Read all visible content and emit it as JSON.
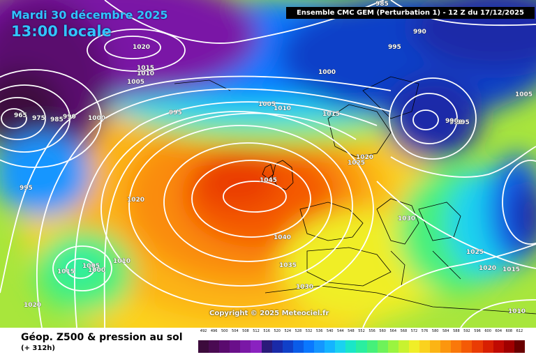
{
  "header": {
    "date": "Mardi 30 décembre 2025",
    "time": "13:00 locale",
    "run": "Ensemble CMC GEM  (Perturbation 1)  -  12 Z du 17/12/2025"
  },
  "footer": {
    "title": "Géop. Z500 & pression au sol",
    "lead": "(+ 312h)",
    "copyright": "Copyright © 2025 Meteociel.fr"
  },
  "legend": {
    "values": [
      "492",
      "496",
      "500",
      "504",
      "508",
      "512",
      "516",
      "520",
      "524",
      "528",
      "532",
      "536",
      "540",
      "544",
      "548",
      "552",
      "556",
      "560",
      "564",
      "568",
      "572",
      "576",
      "580",
      "584",
      "588",
      "592",
      "596",
      "600",
      "604",
      "608",
      "612"
    ],
    "colors": [
      "#3c0b3c",
      "#4a0a52",
      "#5a0b6e",
      "#6a0f8a",
      "#7a18a6",
      "#8a22c0",
      "#2a1a7a",
      "#1a2aa8",
      "#1040c8",
      "#0a5ce8",
      "#0a78ff",
      "#1496ff",
      "#14b4ff",
      "#1ad2f0",
      "#1ae6c8",
      "#2aeeA0",
      "#46f07a",
      "#6ef25a",
      "#9af440",
      "#c8f230",
      "#f0ee28",
      "#fad21e",
      "#fcb414",
      "#fc960e",
      "#fa780a",
      "#f45a06",
      "#ea3c04",
      "#d82002",
      "#c00a02",
      "#a00000",
      "#6a0000"
    ]
  },
  "isobar_labels": [
    "985",
    "990",
    "995",
    "1020",
    "1015",
    "1010",
    "1005",
    "1000",
    "1005",
    "1010",
    "995",
    "965",
    "975",
    "985",
    "990",
    "1000",
    "995",
    "1015",
    "1020",
    "1025",
    "1045",
    "1020",
    "1030",
    "1040",
    "1035",
    "1030",
    "1025",
    "1020",
    "1015",
    "1010",
    "995",
    "1005",
    "990",
    "995",
    "1015",
    "1005",
    "1000",
    "1010",
    "1020"
  ]
}
